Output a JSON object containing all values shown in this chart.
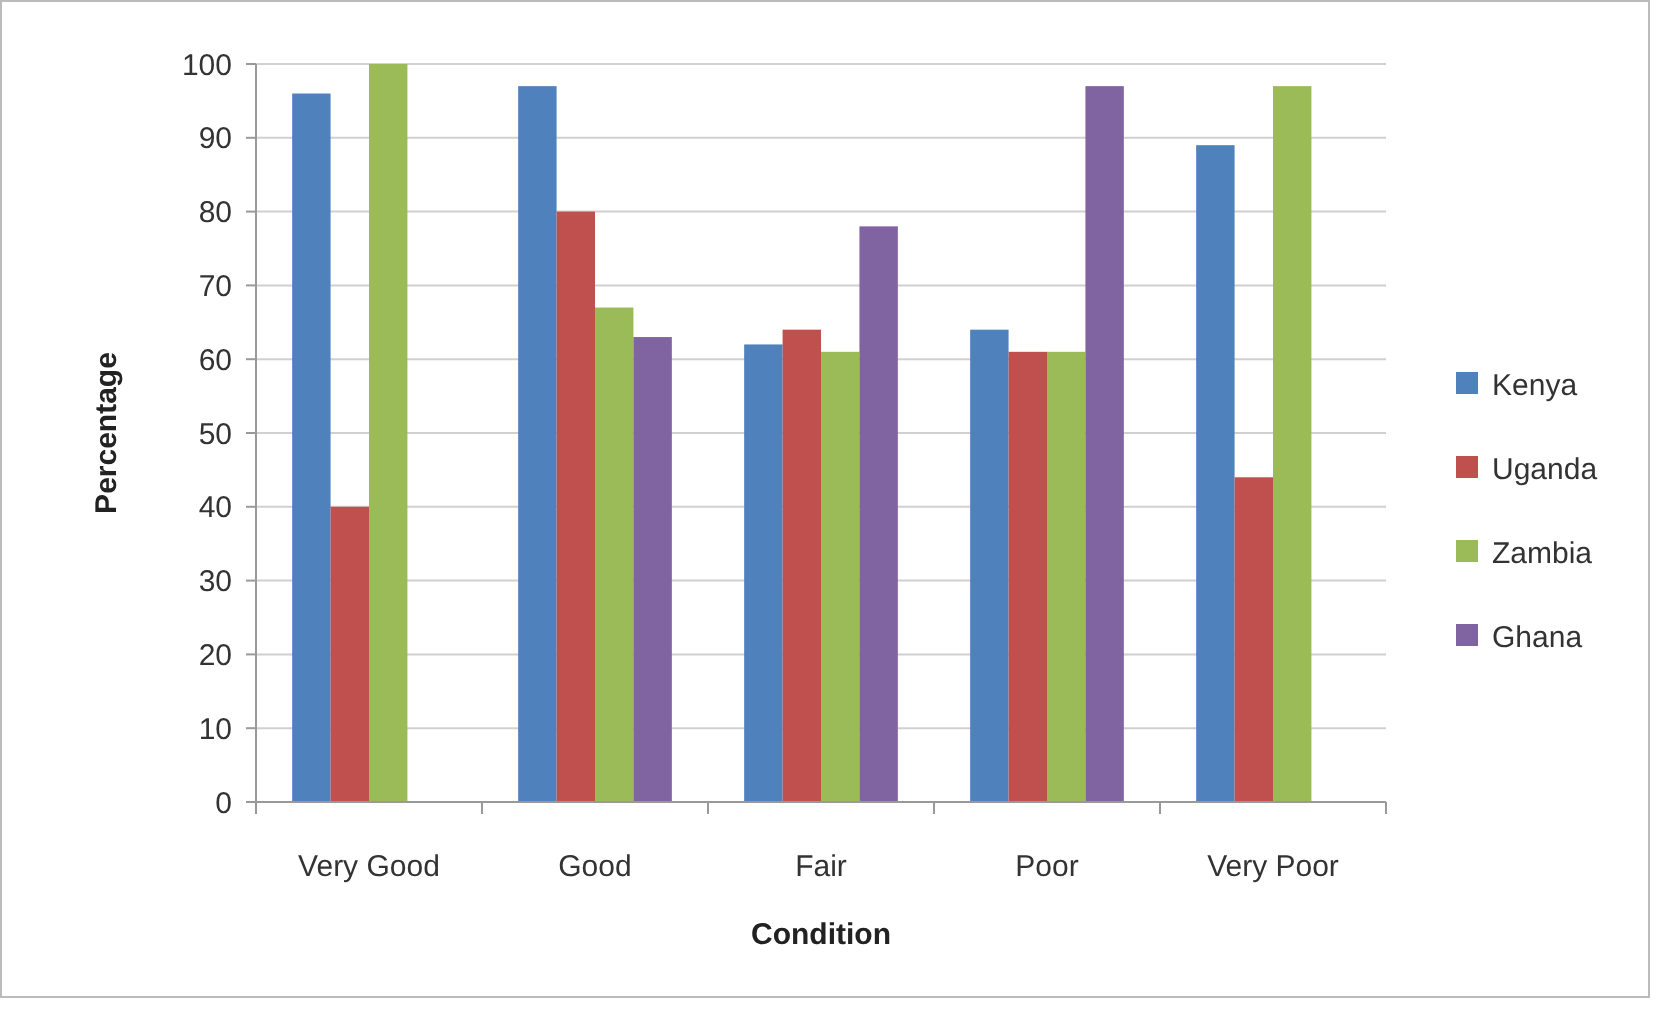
{
  "chart_data": {
    "type": "bar",
    "xlabel": "Condition",
    "ylabel": "Percentage",
    "categories": [
      "Very Good",
      "Good",
      "Fair",
      "Poor",
      "Very Poor"
    ],
    "series": [
      {
        "name": "Kenya",
        "color": "#4f81bd",
        "values": [
          96,
          97,
          62,
          64,
          89
        ]
      },
      {
        "name": "Uganda",
        "color": "#c0504d",
        "values": [
          40,
          80,
          64,
          61,
          44
        ]
      },
      {
        "name": "Zambia",
        "color": "#9bbb59",
        "values": [
          100,
          67,
          61,
          61,
          97
        ]
      },
      {
        "name": "Ghana",
        "color": "#8064a2",
        "values": [
          null,
          63,
          78,
          97,
          null
        ]
      }
    ],
    "ylim": [
      0,
      100
    ],
    "yticks": [
      0,
      10,
      20,
      30,
      40,
      50,
      60,
      70,
      80,
      90,
      100
    ],
    "grid": "y",
    "legend": "right"
  }
}
